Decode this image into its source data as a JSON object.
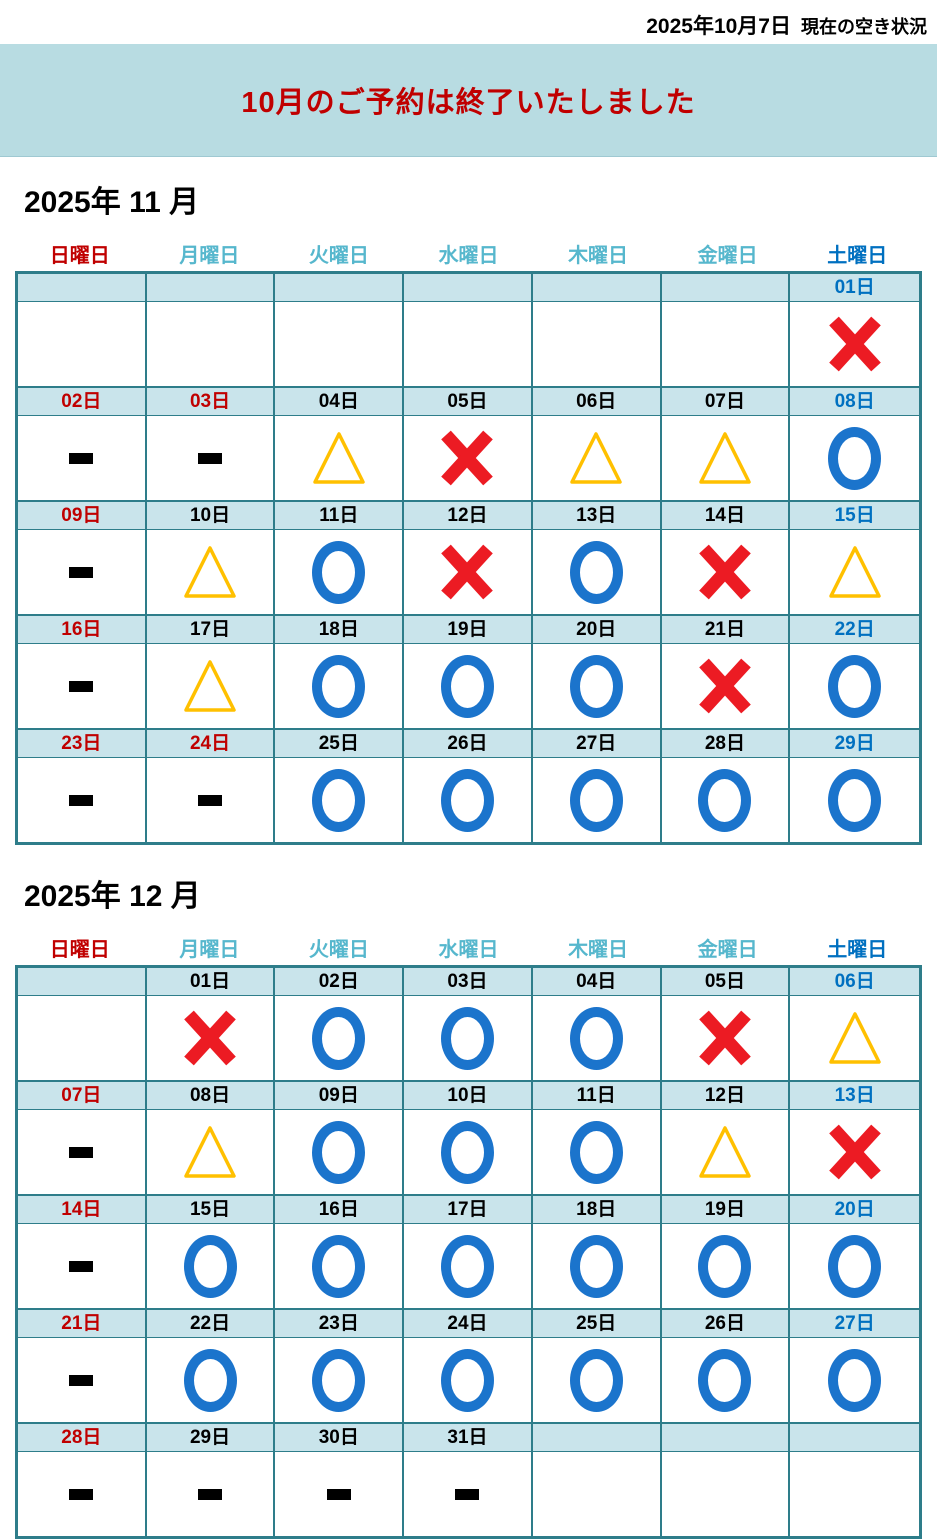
{
  "top_status": {
    "date": "2025年10月7日",
    "label": "現在の空き状況"
  },
  "banner": {
    "text": "10月のご予約は終了いたしました"
  },
  "day_headers": [
    {
      "label": "日曜日",
      "type": "sun"
    },
    {
      "label": "月曜日",
      "type": "wd"
    },
    {
      "label": "火曜日",
      "type": "wd"
    },
    {
      "label": "水曜日",
      "type": "wd"
    },
    {
      "label": "木曜日",
      "type": "wd"
    },
    {
      "label": "金曜日",
      "type": "wd"
    },
    {
      "label": "土曜日",
      "type": "sat"
    }
  ],
  "colors": {
    "sunday_holiday_red": "#C00000",
    "saturday_blue": "#0070C0",
    "weekday_header_teal": "#56B7CD",
    "circle_blue": "#1B74CC",
    "cross_red": "#EC1B23",
    "triangle_yellow": "#FFC000",
    "banner_bg": "#B8DCE2",
    "date_band_bg": "#C9E4EB",
    "table_border_teal": "#2E7D8A"
  },
  "months": [
    {
      "title": "2025年 11 月",
      "weeks": [
        [
          {
            "date": "",
            "date_color": "",
            "symbol": ""
          },
          {
            "date": "",
            "date_color": "",
            "symbol": ""
          },
          {
            "date": "",
            "date_color": "",
            "symbol": ""
          },
          {
            "date": "",
            "date_color": "",
            "symbol": ""
          },
          {
            "date": "",
            "date_color": "",
            "symbol": ""
          },
          {
            "date": "",
            "date_color": "",
            "symbol": ""
          },
          {
            "date": "01日",
            "date_color": "blue",
            "symbol": "cross"
          }
        ],
        [
          {
            "date": "02日",
            "date_color": "red",
            "symbol": "dash"
          },
          {
            "date": "03日",
            "date_color": "red",
            "symbol": "dash"
          },
          {
            "date": "04日",
            "date_color": "black",
            "symbol": "triangle"
          },
          {
            "date": "05日",
            "date_color": "black",
            "symbol": "cross"
          },
          {
            "date": "06日",
            "date_color": "black",
            "symbol": "triangle"
          },
          {
            "date": "07日",
            "date_color": "black",
            "symbol": "triangle"
          },
          {
            "date": "08日",
            "date_color": "blue",
            "symbol": "circle"
          }
        ],
        [
          {
            "date": "09日",
            "date_color": "red",
            "symbol": "dash"
          },
          {
            "date": "10日",
            "date_color": "black",
            "symbol": "triangle"
          },
          {
            "date": "11日",
            "date_color": "black",
            "symbol": "circle"
          },
          {
            "date": "12日",
            "date_color": "black",
            "symbol": "cross"
          },
          {
            "date": "13日",
            "date_color": "black",
            "symbol": "circle"
          },
          {
            "date": "14日",
            "date_color": "black",
            "symbol": "cross"
          },
          {
            "date": "15日",
            "date_color": "blue",
            "symbol": "triangle"
          }
        ],
        [
          {
            "date": "16日",
            "date_color": "red",
            "symbol": "dash"
          },
          {
            "date": "17日",
            "date_color": "black",
            "symbol": "triangle"
          },
          {
            "date": "18日",
            "date_color": "black",
            "symbol": "circle"
          },
          {
            "date": "19日",
            "date_color": "black",
            "symbol": "circle"
          },
          {
            "date": "20日",
            "date_color": "black",
            "symbol": "circle"
          },
          {
            "date": "21日",
            "date_color": "black",
            "symbol": "cross"
          },
          {
            "date": "22日",
            "date_color": "blue",
            "symbol": "circle"
          }
        ],
        [
          {
            "date": "23日",
            "date_color": "red",
            "symbol": "dash"
          },
          {
            "date": "24日",
            "date_color": "red",
            "symbol": "dash"
          },
          {
            "date": "25日",
            "date_color": "black",
            "symbol": "circle"
          },
          {
            "date": "26日",
            "date_color": "black",
            "symbol": "circle"
          },
          {
            "date": "27日",
            "date_color": "black",
            "symbol": "circle"
          },
          {
            "date": "28日",
            "date_color": "black",
            "symbol": "circle"
          },
          {
            "date": "29日",
            "date_color": "blue",
            "symbol": "circle"
          }
        ]
      ]
    },
    {
      "title": "2025年 12 月",
      "weeks": [
        [
          {
            "date": "",
            "date_color": "",
            "symbol": ""
          },
          {
            "date": "01日",
            "date_color": "black",
            "symbol": "cross"
          },
          {
            "date": "02日",
            "date_color": "black",
            "symbol": "circle"
          },
          {
            "date": "03日",
            "date_color": "black",
            "symbol": "circle"
          },
          {
            "date": "04日",
            "date_color": "black",
            "symbol": "circle"
          },
          {
            "date": "05日",
            "date_color": "black",
            "symbol": "cross"
          },
          {
            "date": "06日",
            "date_color": "blue",
            "symbol": "triangle"
          }
        ],
        [
          {
            "date": "07日",
            "date_color": "red",
            "symbol": "dash"
          },
          {
            "date": "08日",
            "date_color": "black",
            "symbol": "triangle"
          },
          {
            "date": "09日",
            "date_color": "black",
            "symbol": "circle"
          },
          {
            "date": "10日",
            "date_color": "black",
            "symbol": "circle"
          },
          {
            "date": "11日",
            "date_color": "black",
            "symbol": "circle"
          },
          {
            "date": "12日",
            "date_color": "black",
            "symbol": "triangle"
          },
          {
            "date": "13日",
            "date_color": "blue",
            "symbol": "cross"
          }
        ],
        [
          {
            "date": "14日",
            "date_color": "red",
            "symbol": "dash"
          },
          {
            "date": "15日",
            "date_color": "black",
            "symbol": "circle"
          },
          {
            "date": "16日",
            "date_color": "black",
            "symbol": "circle"
          },
          {
            "date": "17日",
            "date_color": "black",
            "symbol": "circle"
          },
          {
            "date": "18日",
            "date_color": "black",
            "symbol": "circle"
          },
          {
            "date": "19日",
            "date_color": "black",
            "symbol": "circle"
          },
          {
            "date": "20日",
            "date_color": "blue",
            "symbol": "circle"
          }
        ],
        [
          {
            "date": "21日",
            "date_color": "red",
            "symbol": "dash"
          },
          {
            "date": "22日",
            "date_color": "black",
            "symbol": "circle"
          },
          {
            "date": "23日",
            "date_color": "black",
            "symbol": "circle"
          },
          {
            "date": "24日",
            "date_color": "black",
            "symbol": "circle"
          },
          {
            "date": "25日",
            "date_color": "black",
            "symbol": "circle"
          },
          {
            "date": "26日",
            "date_color": "black",
            "symbol": "circle"
          },
          {
            "date": "27日",
            "date_color": "blue",
            "symbol": "circle"
          }
        ],
        [
          {
            "date": "28日",
            "date_color": "red",
            "symbol": "dash"
          },
          {
            "date": "29日",
            "date_color": "black",
            "symbol": "dash"
          },
          {
            "date": "30日",
            "date_color": "black",
            "symbol": "dash"
          },
          {
            "date": "31日",
            "date_color": "black",
            "symbol": "dash"
          },
          {
            "date": "",
            "date_color": "",
            "symbol": ""
          },
          {
            "date": "",
            "date_color": "",
            "symbol": ""
          },
          {
            "date": "",
            "date_color": "",
            "symbol": ""
          }
        ]
      ]
    }
  ]
}
